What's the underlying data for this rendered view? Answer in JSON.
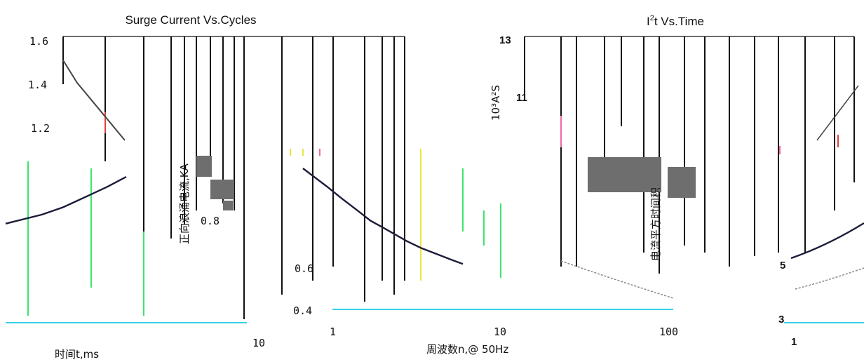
{
  "charts": [
    {
      "title": "Surge Current Vs.Cycles",
      "ylabel": "正向浪涌电流,KA",
      "xlabel_left": "时间t,ms",
      "xlabel": "周波数n,@ 50Hz",
      "y_ticks": [
        "1.6",
        "1.4",
        "1.2",
        "0.8",
        "0.6",
        "0.4"
      ],
      "x_ticks": [
        "10",
        "1",
        "10",
        "100"
      ]
    },
    {
      "title": "I²t  Vs.Time",
      "ylabel": "电流平方时间积",
      "yunit": "10³A²S",
      "y_ticks": [
        "13",
        "11",
        "5",
        "3"
      ],
      "x_ticks": [
        "1"
      ]
    }
  ],
  "chart_data": [
    {
      "type": "line",
      "title": "Surge Current Vs.Cycles",
      "xlabel": "周波数n,@ 50Hz",
      "ylabel": "正向浪涌电流,KA",
      "x_scale": "log",
      "xlim": [
        1,
        100
      ],
      "ylim": [
        0.4,
        1.6
      ],
      "series": [
        {
          "x": [
            1,
            2,
            3,
            5,
            7,
            10,
            20,
            30,
            50,
            70,
            100
          ],
          "y": [
            1.02,
            0.94,
            0.89,
            0.83,
            0.79,
            0.76,
            0.7,
            0.67,
            0.64,
            0.62,
            0.6
          ]
        }
      ]
    },
    {
      "type": "line",
      "title": "I²t  Vs.Time",
      "ylabel": "电流平方时间积",
      "yunit": "10³A²S",
      "xlabel": "时间t,ms",
      "x_scale": "log",
      "xlim": [
        1,
        10
      ],
      "ylim": [
        3,
        13
      ],
      "series": [
        {
          "x": [
            1,
            2,
            3,
            5,
            7,
            10
          ],
          "y": [
            5.1,
            6.2,
            7.1,
            8.6,
            9.6,
            10.8
          ]
        }
      ]
    }
  ]
}
